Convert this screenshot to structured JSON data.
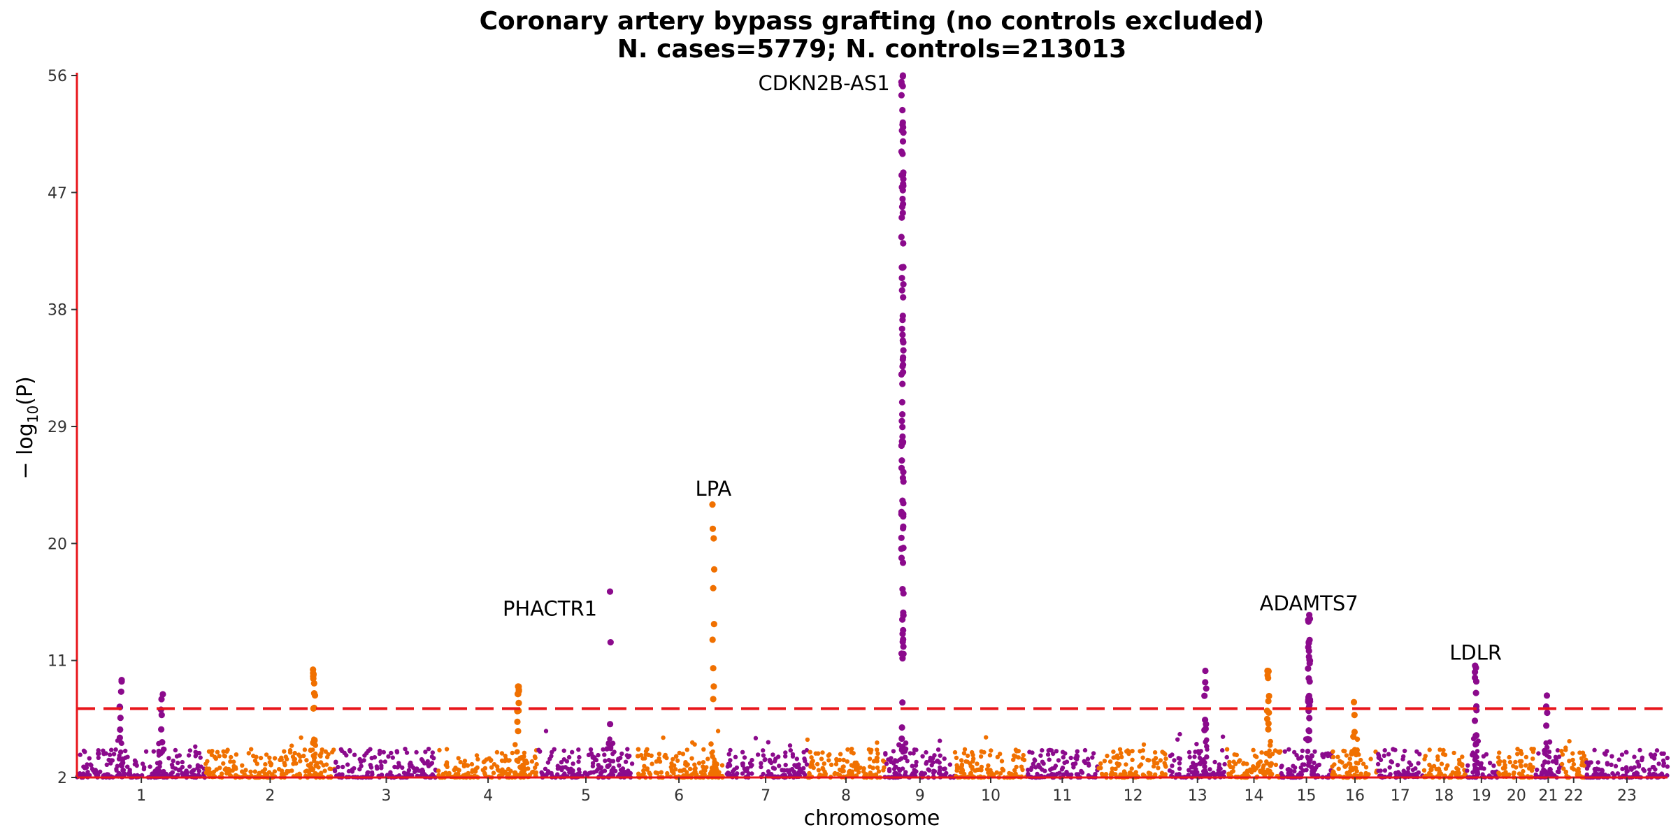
{
  "chart_data": {
    "type": "scatter",
    "title": "Coronary artery bypass grafting (no controls excluded)",
    "subtitle": "N. cases=5779; N. controls=213013",
    "xlabel": "chromosome",
    "ylabel_main": "− log",
    "ylabel_sub": "10",
    "ylabel_end": "(P)",
    "ylim": [
      2,
      56
    ],
    "yticks": [
      "2",
      "11",
      "20",
      "29",
      "38",
      "47",
      "56"
    ],
    "significance_line": 7.3,
    "colors": {
      "odd_chromosome": "#8b0a8c",
      "even_chromosome": "#f07000",
      "axis": "#e8161b",
      "threshold": "#e8161b"
    },
    "chromosomes": [
      {
        "label": "1",
        "span": [
          0.0,
          0.081
        ]
      },
      {
        "label": "2",
        "span": [
          0.081,
          0.162
        ]
      },
      {
        "label": "3",
        "span": [
          0.162,
          0.227
        ]
      },
      {
        "label": "4",
        "span": [
          0.227,
          0.29
        ]
      },
      {
        "label": "5",
        "span": [
          0.29,
          0.35
        ]
      },
      {
        "label": "6",
        "span": [
          0.35,
          0.407
        ]
      },
      {
        "label": "7",
        "span": [
          0.407,
          0.459
        ]
      },
      {
        "label": "8",
        "span": [
          0.459,
          0.508
        ]
      },
      {
        "label": "9",
        "span": [
          0.508,
          0.552
        ]
      },
      {
        "label": "10",
        "span": [
          0.552,
          0.597
        ]
      },
      {
        "label": "11",
        "span": [
          0.597,
          0.642
        ]
      },
      {
        "label": "12",
        "span": [
          0.642,
          0.686
        ]
      },
      {
        "label": "13",
        "span": [
          0.686,
          0.723
        ]
      },
      {
        "label": "14",
        "span": [
          0.723,
          0.757
        ]
      },
      {
        "label": "15",
        "span": [
          0.757,
          0.789
        ]
      },
      {
        "label": "16",
        "span": [
          0.789,
          0.818
        ]
      },
      {
        "label": "17",
        "span": [
          0.818,
          0.846
        ]
      },
      {
        "label": "18",
        "span": [
          0.846,
          0.873
        ]
      },
      {
        "label": "19",
        "span": [
          0.873,
          0.893
        ]
      },
      {
        "label": "20",
        "span": [
          0.893,
          0.917
        ]
      },
      {
        "label": "21",
        "span": [
          0.917,
          0.933
        ]
      },
      {
        "label": "22",
        "span": [
          0.933,
          0.949
        ]
      },
      {
        "label": "23",
        "span": [
          0.949,
          1.0
        ]
      }
    ],
    "peaks": [
      {
        "chrom": "1",
        "pos": 0.34,
        "max": 9.5,
        "n": 8
      },
      {
        "chrom": "1",
        "pos": 0.66,
        "max": 8.4,
        "n": 6
      },
      {
        "chrom": "2",
        "pos": 0.84,
        "max": 10.3,
        "n": 14
      },
      {
        "chrom": "4",
        "pos": 0.8,
        "max": 9.0,
        "n": 12
      },
      {
        "chrom": "5",
        "pos": 0.75,
        "max": 16.3,
        "n": 3
      },
      {
        "chrom": "6",
        "pos": 0.88,
        "max": 23.0,
        "n": 10
      },
      {
        "chrom": "9",
        "pos": 0.25,
        "max": 56.0,
        "n": 95
      },
      {
        "chrom": "13",
        "pos": 0.63,
        "max": 10.2,
        "n": 8
      },
      {
        "chrom": "14",
        "pos": 0.76,
        "max": 10.2,
        "n": 12
      },
      {
        "chrom": "15",
        "pos": 0.55,
        "max": 14.5,
        "n": 32
      },
      {
        "chrom": "16",
        "pos": 0.48,
        "max": 7.8,
        "n": 4
      },
      {
        "chrom": "19",
        "pos": 0.32,
        "max": 10.6,
        "n": 12
      },
      {
        "chrom": "21",
        "pos": 0.45,
        "max": 8.3,
        "n": 4
      }
    ],
    "annotations": [
      {
        "text": "CDKN2B-AS1",
        "chrom": "9",
        "pos": 0.25,
        "y": 55.4,
        "anchor": "end"
      },
      {
        "text": "LPA",
        "chrom": "6",
        "pos": 0.88,
        "y": 24.2,
        "anchor": "middle"
      },
      {
        "text": "PHACTR1",
        "chrom": "5",
        "pos": 0.75,
        "y": 15.0,
        "anchor": "end"
      },
      {
        "text": "ADAMTS7",
        "chrom": "15",
        "pos": 0.55,
        "y": 15.4,
        "anchor": "middle"
      },
      {
        "text": "LDLR",
        "chrom": "19",
        "pos": 0.32,
        "y": 11.6,
        "anchor": "middle"
      }
    ]
  }
}
